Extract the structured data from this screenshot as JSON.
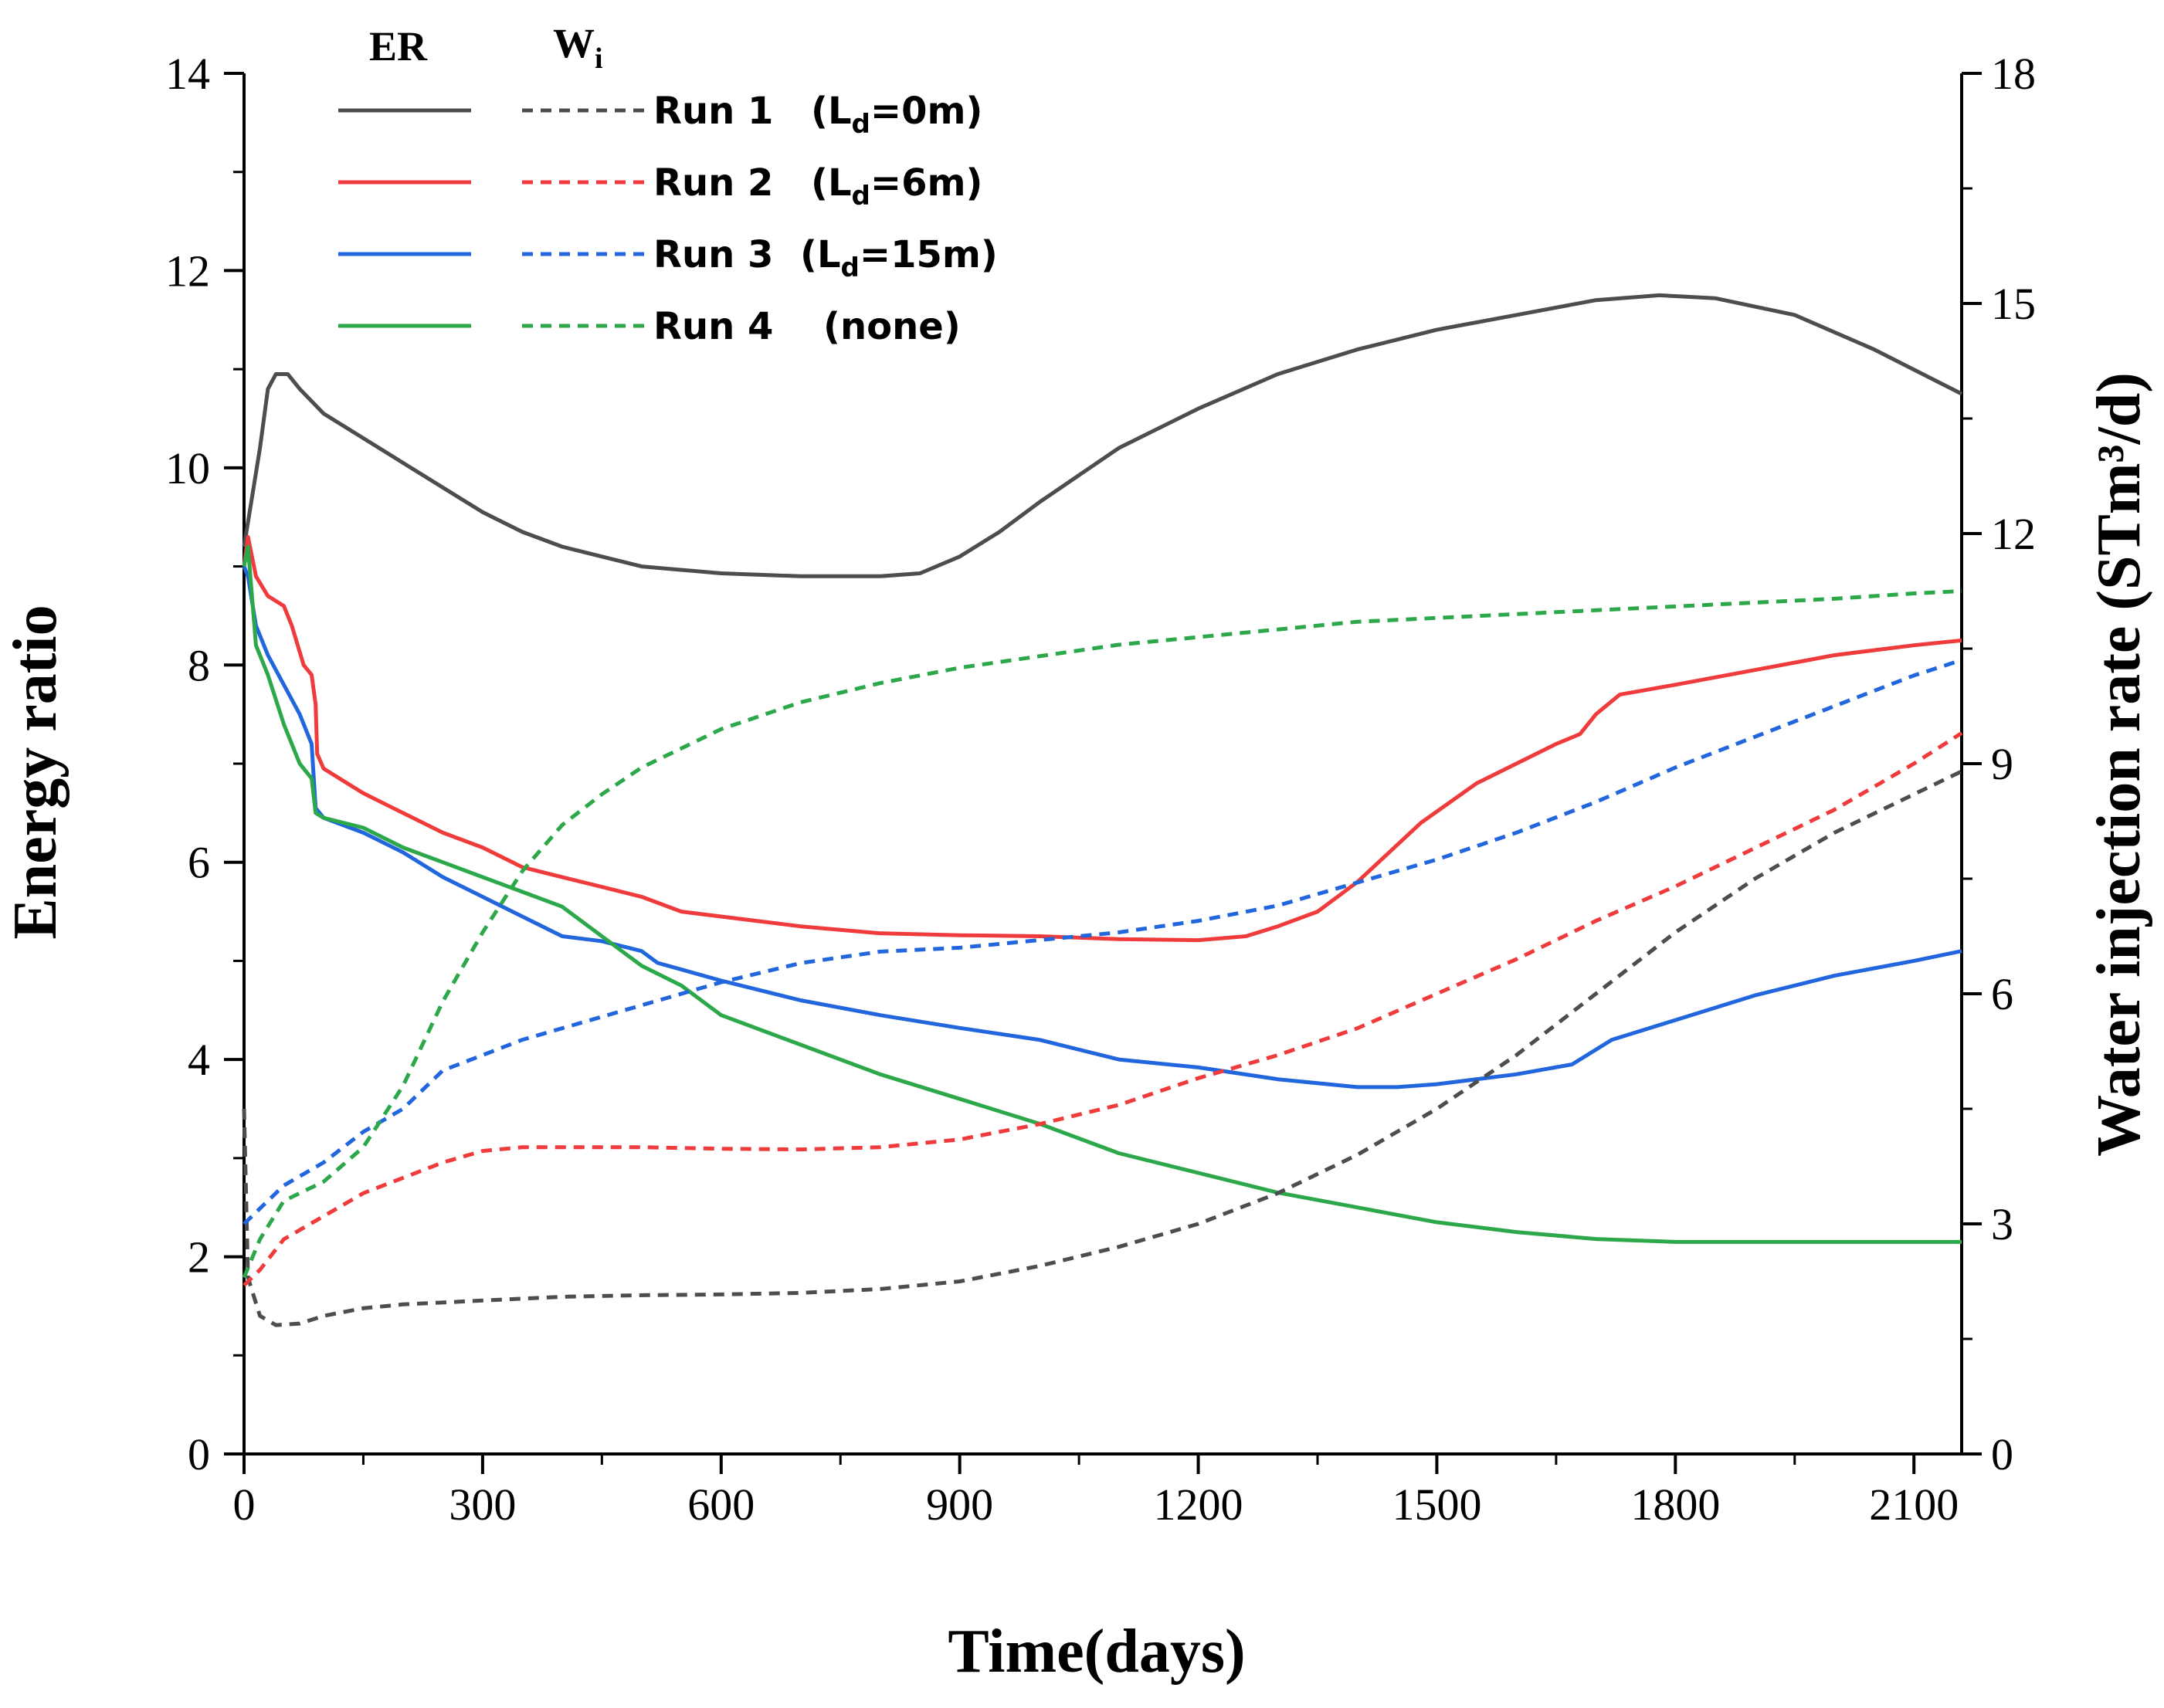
{
  "chart_data": {
    "type": "line",
    "xlabel": "Time(days)",
    "ylabel_left": "Energy ratio",
    "ylabel_right": "Water injection rate (STm³/d)",
    "xlim": [
      0,
      2160
    ],
    "ylim_left": [
      0,
      14
    ],
    "ylim_right": [
      0,
      18
    ],
    "x_ticks": [
      "0",
      "300",
      "600",
      "900",
      "1200",
      "1500",
      "1800",
      "2100"
    ],
    "y_ticks_left": [
      "0",
      "2",
      "4",
      "6",
      "8",
      "10",
      "12",
      "14"
    ],
    "y_ticks_right": [
      "0",
      "3",
      "6",
      "9",
      "12",
      "15",
      "18"
    ],
    "grid": false,
    "legend": {
      "placement": "top-left",
      "header_er": "ER",
      "header_wi": "W",
      "header_wi_sub": "i",
      "entries": [
        {
          "run": "Run 1",
          "open": "(L",
          "sub": "d",
          "close": "=0m)"
        },
        {
          "run": "Run 2",
          "open": "(L",
          "sub": "d",
          "close": "=6m)"
        },
        {
          "run": "Run 3",
          "open": "(L",
          "sub": "d",
          "close": "=15m)"
        },
        {
          "run": "Run 4",
          "open": "",
          "sub": "",
          "close": "(none)"
        }
      ]
    },
    "series": [
      {
        "name": "Run 1 ER",
        "axis": "left",
        "style": "solid",
        "color": "#4d4d4d",
        "points": [
          [
            0,
            9.2
          ],
          [
            10,
            9.7
          ],
          [
            20,
            10.2
          ],
          [
            30,
            10.8
          ],
          [
            40,
            10.95
          ],
          [
            55,
            10.95
          ],
          [
            70,
            10.8
          ],
          [
            100,
            10.55
          ],
          [
            150,
            10.3
          ],
          [
            200,
            10.05
          ],
          [
            250,
            9.8
          ],
          [
            300,
            9.55
          ],
          [
            350,
            9.35
          ],
          [
            400,
            9.2
          ],
          [
            450,
            9.1
          ],
          [
            500,
            9.0
          ],
          [
            600,
            8.93
          ],
          [
            700,
            8.9
          ],
          [
            800,
            8.9
          ],
          [
            850,
            8.93
          ],
          [
            900,
            9.1
          ],
          [
            950,
            9.35
          ],
          [
            1000,
            9.65
          ],
          [
            1100,
            10.2
          ],
          [
            1200,
            10.6
          ],
          [
            1300,
            10.95
          ],
          [
            1400,
            11.2
          ],
          [
            1500,
            11.4
          ],
          [
            1600,
            11.55
          ],
          [
            1700,
            11.7
          ],
          [
            1780,
            11.75
          ],
          [
            1850,
            11.72
          ],
          [
            1950,
            11.55
          ],
          [
            2050,
            11.2
          ],
          [
            2160,
            10.75
          ]
        ]
      },
      {
        "name": "Run 2 ER",
        "axis": "left",
        "style": "solid",
        "color": "#ef3b3b",
        "points": [
          [
            0,
            9.0
          ],
          [
            5,
            9.3
          ],
          [
            15,
            8.9
          ],
          [
            30,
            8.7
          ],
          [
            50,
            8.6
          ],
          [
            60,
            8.4
          ],
          [
            75,
            8.0
          ],
          [
            85,
            7.9
          ],
          [
            90,
            7.6
          ],
          [
            92,
            7.1
          ],
          [
            100,
            6.95
          ],
          [
            150,
            6.7
          ],
          [
            200,
            6.5
          ],
          [
            250,
            6.3
          ],
          [
            300,
            6.15
          ],
          [
            350,
            5.95
          ],
          [
            400,
            5.85
          ],
          [
            450,
            5.75
          ],
          [
            500,
            5.65
          ],
          [
            550,
            5.5
          ],
          [
            600,
            5.45
          ],
          [
            700,
            5.35
          ],
          [
            800,
            5.28
          ],
          [
            900,
            5.26
          ],
          [
            1000,
            5.25
          ],
          [
            1100,
            5.22
          ],
          [
            1200,
            5.21
          ],
          [
            1260,
            5.25
          ],
          [
            1300,
            5.35
          ],
          [
            1350,
            5.5
          ],
          [
            1400,
            5.8
          ],
          [
            1440,
            6.1
          ],
          [
            1480,
            6.4
          ],
          [
            1550,
            6.8
          ],
          [
            1600,
            7.0
          ],
          [
            1650,
            7.2
          ],
          [
            1680,
            7.3
          ],
          [
            1700,
            7.5
          ],
          [
            1730,
            7.7
          ],
          [
            1800,
            7.8
          ],
          [
            1900,
            7.95
          ],
          [
            2000,
            8.1
          ],
          [
            2100,
            8.2
          ],
          [
            2160,
            8.25
          ]
        ]
      },
      {
        "name": "Run 3 ER",
        "axis": "left",
        "style": "solid",
        "color": "#2166dd",
        "points": [
          [
            0,
            9.0
          ],
          [
            5,
            8.9
          ],
          [
            15,
            8.4
          ],
          [
            30,
            8.1
          ],
          [
            50,
            7.8
          ],
          [
            70,
            7.5
          ],
          [
            85,
            7.2
          ],
          [
            90,
            6.55
          ],
          [
            100,
            6.45
          ],
          [
            150,
            6.3
          ],
          [
            200,
            6.1
          ],
          [
            250,
            5.85
          ],
          [
            300,
            5.65
          ],
          [
            350,
            5.45
          ],
          [
            400,
            5.25
          ],
          [
            450,
            5.2
          ],
          [
            500,
            5.1
          ],
          [
            520,
            4.98
          ],
          [
            600,
            4.8
          ],
          [
            700,
            4.6
          ],
          [
            800,
            4.45
          ],
          [
            900,
            4.32
          ],
          [
            1000,
            4.2
          ],
          [
            1100,
            4.0
          ],
          [
            1200,
            3.92
          ],
          [
            1300,
            3.8
          ],
          [
            1400,
            3.72
          ],
          [
            1450,
            3.72
          ],
          [
            1500,
            3.75
          ],
          [
            1600,
            3.85
          ],
          [
            1670,
            3.95
          ],
          [
            1720,
            4.2
          ],
          [
            1800,
            4.4
          ],
          [
            1900,
            4.65
          ],
          [
            2000,
            4.85
          ],
          [
            2100,
            5.0
          ],
          [
            2160,
            5.1
          ]
        ]
      },
      {
        "name": "Run 4 ER",
        "axis": "left",
        "style": "solid",
        "color": "#2ca84a",
        "points": [
          [
            0,
            9.0
          ],
          [
            5,
            9.2
          ],
          [
            15,
            8.2
          ],
          [
            30,
            7.9
          ],
          [
            50,
            7.4
          ],
          [
            70,
            7.0
          ],
          [
            85,
            6.85
          ],
          [
            90,
            6.5
          ],
          [
            100,
            6.45
          ],
          [
            150,
            6.35
          ],
          [
            200,
            6.15
          ],
          [
            250,
            6.0
          ],
          [
            300,
            5.85
          ],
          [
            350,
            5.7
          ],
          [
            400,
            5.55
          ],
          [
            450,
            5.25
          ],
          [
            500,
            4.95
          ],
          [
            550,
            4.75
          ],
          [
            600,
            4.45
          ],
          [
            700,
            4.15
          ],
          [
            800,
            3.85
          ],
          [
            900,
            3.6
          ],
          [
            1000,
            3.35
          ],
          [
            1100,
            3.05
          ],
          [
            1200,
            2.85
          ],
          [
            1300,
            2.65
          ],
          [
            1400,
            2.5
          ],
          [
            1500,
            2.35
          ],
          [
            1600,
            2.25
          ],
          [
            1700,
            2.18
          ],
          [
            1800,
            2.15
          ],
          [
            1900,
            2.15
          ],
          [
            2000,
            2.15
          ],
          [
            2100,
            2.15
          ],
          [
            2160,
            2.15
          ]
        ]
      },
      {
        "name": "Run 1 Wi",
        "axis": "right",
        "style": "dashed",
        "color": "#4d4d4d",
        "points": [
          [
            0,
            4.5
          ],
          [
            5,
            2.3
          ],
          [
            20,
            1.8
          ],
          [
            40,
            1.68
          ],
          [
            70,
            1.7
          ],
          [
            100,
            1.8
          ],
          [
            150,
            1.9
          ],
          [
            200,
            1.95
          ],
          [
            300,
            2.0
          ],
          [
            400,
            2.05
          ],
          [
            500,
            2.07
          ],
          [
            600,
            2.08
          ],
          [
            700,
            2.1
          ],
          [
            800,
            2.15
          ],
          [
            900,
            2.25
          ],
          [
            1000,
            2.45
          ],
          [
            1100,
            2.7
          ],
          [
            1200,
            3.0
          ],
          [
            1300,
            3.4
          ],
          [
            1400,
            3.9
          ],
          [
            1500,
            4.5
          ],
          [
            1600,
            5.2
          ],
          [
            1700,
            6.0
          ],
          [
            1800,
            6.8
          ],
          [
            1900,
            7.5
          ],
          [
            2000,
            8.1
          ],
          [
            2100,
            8.6
          ],
          [
            2160,
            8.9
          ]
        ]
      },
      {
        "name": "Run 2 Wi",
        "axis": "right",
        "style": "dashed",
        "color": "#ef3b3b",
        "points": [
          [
            0,
            2.2
          ],
          [
            20,
            2.4
          ],
          [
            50,
            2.8
          ],
          [
            100,
            3.1
          ],
          [
            150,
            3.4
          ],
          [
            200,
            3.6
          ],
          [
            250,
            3.8
          ],
          [
            300,
            3.95
          ],
          [
            350,
            4.0
          ],
          [
            400,
            4.0
          ],
          [
            500,
            4.0
          ],
          [
            600,
            3.98
          ],
          [
            700,
            3.97
          ],
          [
            800,
            4.0
          ],
          [
            900,
            4.1
          ],
          [
            1000,
            4.3
          ],
          [
            1100,
            4.55
          ],
          [
            1200,
            4.9
          ],
          [
            1300,
            5.2
          ],
          [
            1400,
            5.55
          ],
          [
            1500,
            6.0
          ],
          [
            1600,
            6.45
          ],
          [
            1700,
            6.95
          ],
          [
            1800,
            7.4
          ],
          [
            1900,
            7.9
          ],
          [
            2000,
            8.4
          ],
          [
            2100,
            9.0
          ],
          [
            2160,
            9.4
          ]
        ]
      },
      {
        "name": "Run 3 Wi",
        "axis": "right",
        "style": "dashed",
        "color": "#2166dd",
        "points": [
          [
            0,
            3.0
          ],
          [
            20,
            3.2
          ],
          [
            50,
            3.5
          ],
          [
            100,
            3.8
          ],
          [
            150,
            4.2
          ],
          [
            200,
            4.5
          ],
          [
            250,
            5.0
          ],
          [
            300,
            5.2
          ],
          [
            350,
            5.4
          ],
          [
            400,
            5.55
          ],
          [
            500,
            5.85
          ],
          [
            600,
            6.15
          ],
          [
            700,
            6.4
          ],
          [
            800,
            6.55
          ],
          [
            900,
            6.6
          ],
          [
            1000,
            6.7
          ],
          [
            1100,
            6.8
          ],
          [
            1200,
            6.95
          ],
          [
            1300,
            7.15
          ],
          [
            1400,
            7.45
          ],
          [
            1500,
            7.75
          ],
          [
            1600,
            8.1
          ],
          [
            1700,
            8.5
          ],
          [
            1800,
            8.95
          ],
          [
            1900,
            9.35
          ],
          [
            2000,
            9.75
          ],
          [
            2100,
            10.15
          ],
          [
            2160,
            10.35
          ]
        ]
      },
      {
        "name": "Run 4 Wi",
        "axis": "right",
        "style": "dashed",
        "color": "#2ca84a",
        "points": [
          [
            0,
            2.3
          ],
          [
            20,
            2.8
          ],
          [
            50,
            3.3
          ],
          [
            100,
            3.55
          ],
          [
            150,
            4.0
          ],
          [
            200,
            4.8
          ],
          [
            250,
            5.9
          ],
          [
            300,
            6.8
          ],
          [
            350,
            7.6
          ],
          [
            400,
            8.2
          ],
          [
            450,
            8.6
          ],
          [
            500,
            8.95
          ],
          [
            600,
            9.45
          ],
          [
            700,
            9.8
          ],
          [
            800,
            10.05
          ],
          [
            900,
            10.25
          ],
          [
            1000,
            10.4
          ],
          [
            1100,
            10.55
          ],
          [
            1200,
            10.65
          ],
          [
            1300,
            10.75
          ],
          [
            1400,
            10.85
          ],
          [
            1500,
            10.9
          ],
          [
            1600,
            10.95
          ],
          [
            1700,
            11.0
          ],
          [
            1800,
            11.05
          ],
          [
            1900,
            11.1
          ],
          [
            2000,
            11.15
          ],
          [
            2100,
            11.22
          ],
          [
            2160,
            11.25
          ]
        ]
      }
    ]
  }
}
